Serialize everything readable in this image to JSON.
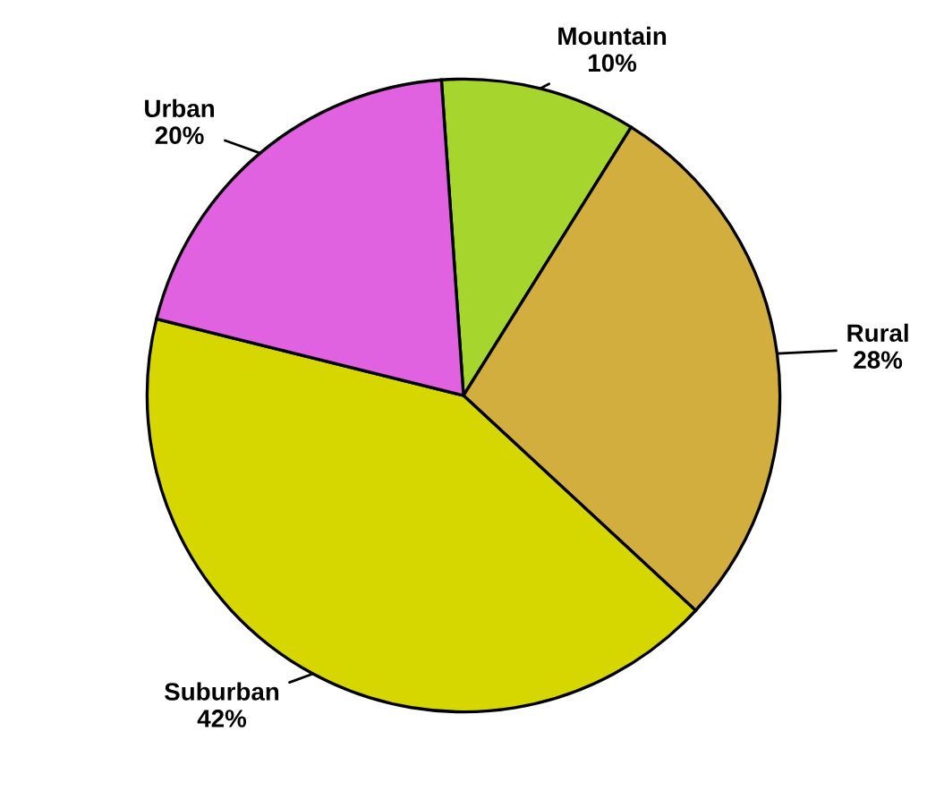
{
  "chart_data": {
    "type": "pie",
    "categories": [
      "Mountain",
      "Rural",
      "Suburban",
      "Urban"
    ],
    "values": [
      10,
      28,
      42,
      20
    ],
    "value_labels": [
      "10%",
      "28%",
      "42%",
      "20%"
    ],
    "colors": [
      "#a6d62e",
      "#d2ae3e",
      "#d6d600",
      "#e062e0"
    ]
  }
}
